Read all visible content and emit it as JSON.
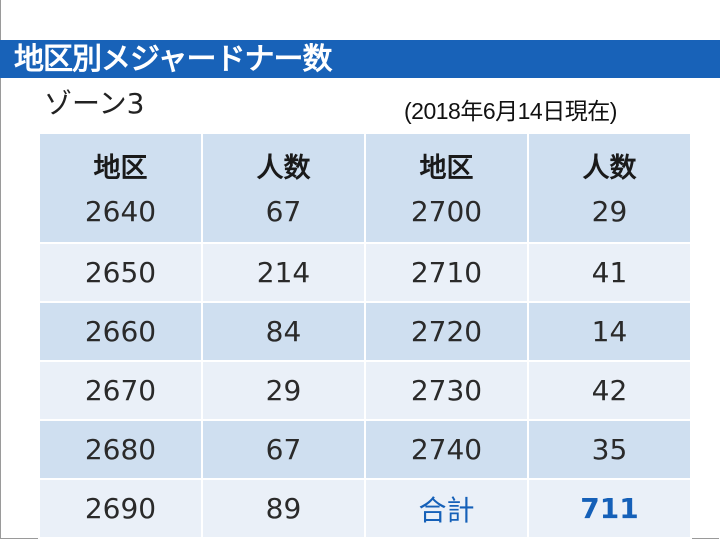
{
  "header": {
    "title": "地区別メジャードナー数",
    "zone": "ゾーン3",
    "as_of": "(2018年6月14日現在)"
  },
  "table": {
    "headers": [
      "地区",
      "人数",
      "地区",
      "人数"
    ],
    "rows": [
      [
        "2640",
        "67",
        "2700",
        "29"
      ],
      [
        "2650",
        "214",
        "2710",
        "41"
      ],
      [
        "2660",
        "84",
        "2720",
        "14"
      ],
      [
        "2670",
        "29",
        "2730",
        "42"
      ],
      [
        "2680",
        "67",
        "2740",
        "35"
      ],
      [
        "2690",
        "89",
        "合計",
        "711"
      ]
    ]
  },
  "colors": {
    "title_bar": "#1862b8",
    "row_dark": "#cfdff0",
    "row_light": "#eaf0f8",
    "total_accent": "#1560b8"
  }
}
